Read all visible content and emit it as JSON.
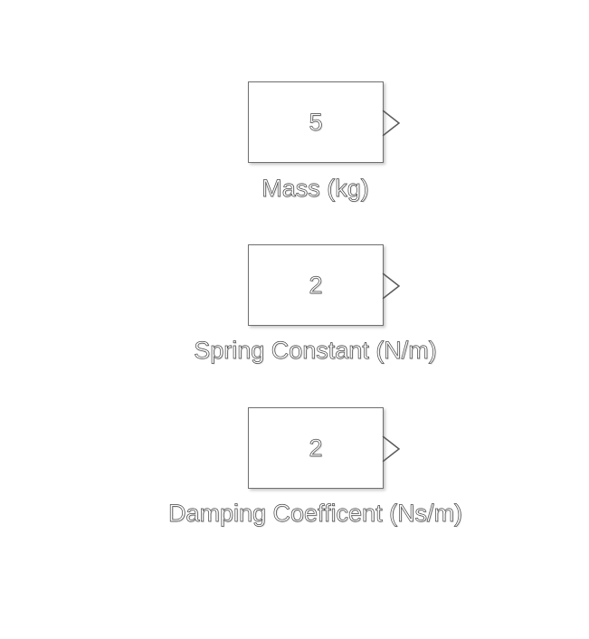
{
  "blocks": [
    {
      "value": "5",
      "label": "Mass (kg)"
    },
    {
      "value": "2",
      "label": "Spring Constant (N/m)"
    },
    {
      "value": "2",
      "label": "Damping Coefficent (Ns/m)"
    }
  ]
}
